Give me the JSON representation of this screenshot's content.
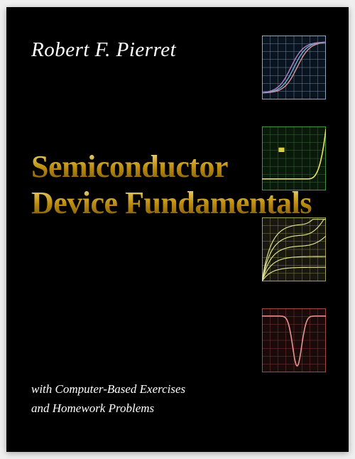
{
  "author": "Robert F. Pierret",
  "title_line1": "Semiconductor",
  "title_line2": "Device Fundamentals",
  "subtitle_line1": "with Computer-Based Exercises",
  "subtitle_line2": "and Homework Problems",
  "colors": {
    "page_bg": "#efefef",
    "cover_bg": "#000000",
    "author_text": "#ffffff",
    "subtitle_text": "#ffffff",
    "gold_top": "#f5e6a8",
    "gold_mid": "#d4af37",
    "gold_low": "#b8860b",
    "gold_dark": "#6b4f0f"
  },
  "charts": [
    {
      "type": "sigmoid-curves",
      "grid_color": "#7a8fa6",
      "border_color": "#9db4c8",
      "background_color": "#0a1420",
      "curves": [
        {
          "color": "#d89090",
          "offset": -6
        },
        {
          "color": "#6fa8d8",
          "offset": 0
        },
        {
          "color": "#b080c0",
          "offset": 6
        }
      ],
      "grid_divisions": 8
    },
    {
      "type": "iv-curve",
      "grid_color": "#3f6b3f",
      "border_color": "#4fa04f",
      "background_color": "#0a1a0a",
      "curve_color": "#e8e060",
      "marker_color": "#d8d040",
      "grid_divisions": 8,
      "knee_x": 0.7
    },
    {
      "type": "family-curves",
      "grid_color": "#8a8a50",
      "border_color": "#b0b060",
      "background_color": "#181810",
      "curve_color": "#e0e090",
      "grid_divisions": 8,
      "curve_count": 5
    },
    {
      "type": "capacitance-dip",
      "grid_color": "#8a3a3a",
      "border_color": "#b05050",
      "background_color": "#1a0a0a",
      "curve_color": "#e89090",
      "grid_divisions": 8,
      "dip_x": 0.55
    }
  ]
}
